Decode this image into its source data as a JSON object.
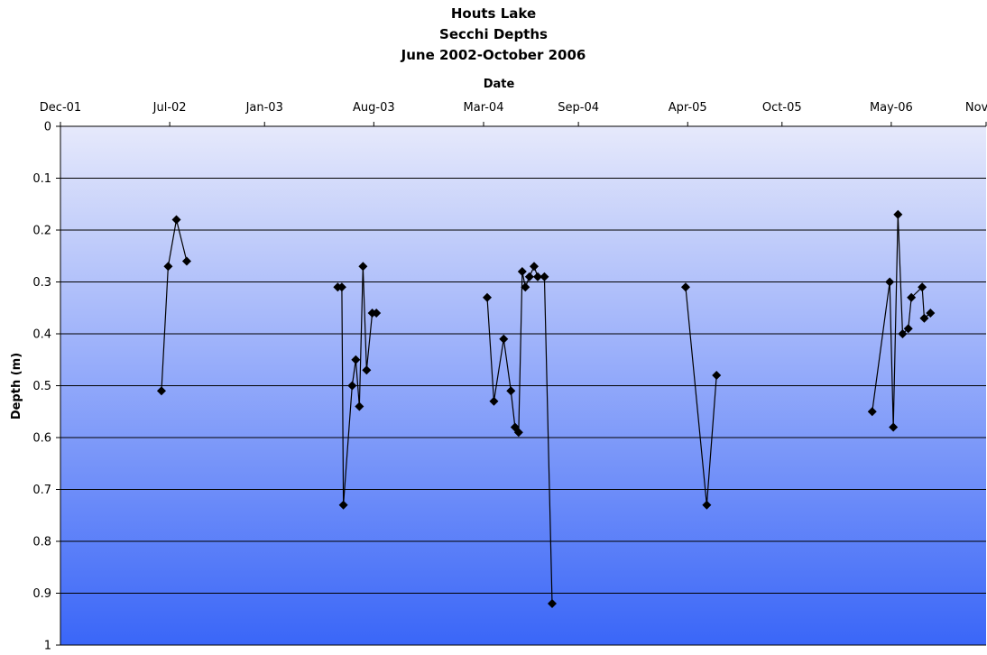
{
  "chart_data": {
    "type": "line",
    "title": [
      "Houts Lake",
      "Secchi Depths",
      "June 2002-October 2006"
    ],
    "xlabel": "Date",
    "ylabel": "Depth (m)",
    "x_axis_position": "top",
    "y_inverted": true,
    "xlim": [
      "2001-12-01",
      "2006-11-01"
    ],
    "ylim": [
      0,
      1
    ],
    "x_ticks": [
      {
        "date": "2001-12-01",
        "label": "Dec-01"
      },
      {
        "date": "2002-07-01",
        "label": "Jul-02"
      },
      {
        "date": "2003-01-01",
        "label": "Jan-03"
      },
      {
        "date": "2003-08-01",
        "label": "Aug-03"
      },
      {
        "date": "2004-03-01",
        "label": "Mar-04"
      },
      {
        "date": "2004-09-01",
        "label": "Sep-04"
      },
      {
        "date": "2005-04-01",
        "label": "Apr-05"
      },
      {
        "date": "2005-10-01",
        "label": "Oct-05"
      },
      {
        "date": "2006-05-01",
        "label": "May-06"
      },
      {
        "date": "2006-11-01",
        "label": "Nov-06"
      }
    ],
    "y_ticks": [
      {
        "value": 0,
        "label": "0"
      },
      {
        "value": 0.1,
        "label": "0.1"
      },
      {
        "value": 0.2,
        "label": "0.2"
      },
      {
        "value": 0.3,
        "label": "0.3"
      },
      {
        "value": 0.4,
        "label": "0.4"
      },
      {
        "value": 0.5,
        "label": "0.5"
      },
      {
        "value": 0.6,
        "label": "0.6"
      },
      {
        "value": 0.7,
        "label": "0.7"
      },
      {
        "value": 0.8,
        "label": "0.8"
      },
      {
        "value": 0.9,
        "label": "0.9"
      },
      {
        "value": 1,
        "label": "1"
      }
    ],
    "grid": "horizontal",
    "background_gradient": [
      "#e6e9fb",
      "#3a66f8"
    ],
    "series_color": "#000000",
    "marker": "diamond",
    "segments": [
      [
        {
          "x": "2002-06-15",
          "y": 0.51
        },
        {
          "x": "2002-06-28",
          "y": 0.27
        },
        {
          "x": "2002-07-14",
          "y": 0.18
        },
        {
          "x": "2002-08-03",
          "y": 0.26
        }
      ],
      [
        {
          "x": "2003-05-23",
          "y": 0.31
        },
        {
          "x": "2003-05-31",
          "y": 0.31
        },
        {
          "x": "2003-06-03",
          "y": 0.73
        },
        {
          "x": "2003-06-20",
          "y": 0.5
        },
        {
          "x": "2003-06-27",
          "y": 0.45
        },
        {
          "x": "2003-07-04",
          "y": 0.54
        },
        {
          "x": "2003-07-11",
          "y": 0.27
        },
        {
          "x": "2003-07-18",
          "y": 0.47
        },
        {
          "x": "2003-07-29",
          "y": 0.36
        },
        {
          "x": "2003-08-06",
          "y": 0.36
        }
      ],
      [
        {
          "x": "2004-03-08",
          "y": 0.33
        },
        {
          "x": "2004-03-21",
          "y": 0.53
        },
        {
          "x": "2004-04-09",
          "y": 0.41
        },
        {
          "x": "2004-04-23",
          "y": 0.51
        },
        {
          "x": "2004-05-01",
          "y": 0.58
        },
        {
          "x": "2004-05-08",
          "y": 0.59
        },
        {
          "x": "2004-05-15",
          "y": 0.28
        },
        {
          "x": "2004-05-21",
          "y": 0.31
        },
        {
          "x": "2004-05-29",
          "y": 0.29
        },
        {
          "x": "2004-06-07",
          "y": 0.27
        },
        {
          "x": "2004-06-14",
          "y": 0.29
        },
        {
          "x": "2004-06-27",
          "y": 0.29
        },
        {
          "x": "2004-07-12",
          "y": 0.92
        }
      ],
      [
        {
          "x": "2005-03-28",
          "y": 0.31
        },
        {
          "x": "2005-05-08",
          "y": 0.73
        },
        {
          "x": "2005-05-27",
          "y": 0.48
        }
      ],
      [
        {
          "x": "2006-03-25",
          "y": 0.55
        },
        {
          "x": "2006-04-28",
          "y": 0.3
        },
        {
          "x": "2006-05-05",
          "y": 0.58
        },
        {
          "x": "2006-05-14",
          "y": 0.17
        },
        {
          "x": "2006-05-23",
          "y": 0.4
        },
        {
          "x": "2006-06-03",
          "y": 0.39
        },
        {
          "x": "2006-06-09",
          "y": 0.33
        },
        {
          "x": "2006-06-30",
          "y": 0.31
        },
        {
          "x": "2006-07-04",
          "y": 0.37
        },
        {
          "x": "2006-07-16",
          "y": 0.36
        }
      ]
    ]
  }
}
